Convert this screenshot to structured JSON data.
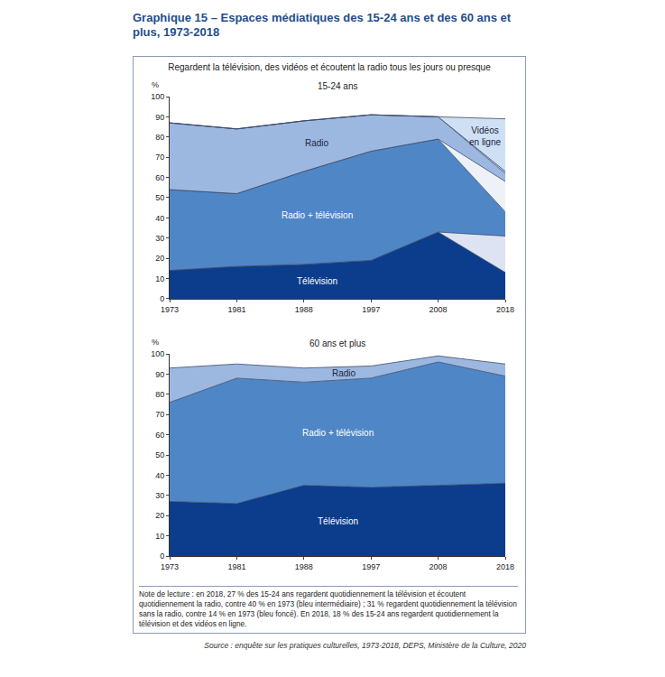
{
  "title": "Graphique 15 – Espaces médiatiques des 15-24 ans et des 60 ans et plus, 1973-2018",
  "heading": "Regardent la télévision, des vidéos et écoutent la radio tous les jours ou presque",
  "note": "Note de lecture : en 2018, 27 % des 15-24 ans regardent quotidiennement la télévision et écoutent quotidiennement la radio, contre 40 % en 1973 (bleu intermédiaire) ; 31 % regardent quotidiennement la télévision sans la radio, contre 14 % en 1973 (bleu foncé). En 2018, 18 % des 15-24 ans regardent quotidiennement la télévision et des vidéos en ligne.",
  "source": "Source : enquête sur les pratiques culturelles, 1973-2018, DEPS, Ministère de la Culture, 2020",
  "chart_data": [
    {
      "type": "area",
      "title": "15-24 ans",
      "ylabel": "%",
      "categories": [
        "1973",
        "1981",
        "1988",
        "1997",
        "2008",
        "2018"
      ],
      "stacked": true,
      "grid": false,
      "ylim": [
        0,
        100
      ],
      "yticks": [
        0,
        10,
        20,
        30,
        40,
        50,
        60,
        70,
        80,
        90,
        100
      ],
      "series": [
        {
          "name": "Télévision",
          "color": "#0b3d8c",
          "values": [
            14,
            16,
            17,
            19,
            33,
            13
          ]
        },
        {
          "color": "#dde3f2",
          "values": [
            0,
            0,
            0,
            0,
            0,
            18
          ]
        },
        {
          "name": "Radio + télévision",
          "color": "#4f86c6",
          "values": [
            40,
            36,
            46,
            54,
            46,
            12
          ]
        },
        {
          "color": "#eef1f8",
          "values": [
            0,
            0,
            0,
            0,
            0,
            15
          ]
        },
        {
          "name": "Radio",
          "color": "#9db8e0",
          "values": [
            33,
            32,
            25,
            18,
            11,
            4
          ]
        },
        {
          "color": "#b8cbe8",
          "values": [
            0,
            0,
            0,
            0,
            0,
            1
          ]
        },
        {
          "name": "Vidéos en ligne",
          "color": "#cfe0f5",
          "values": [
            0,
            0,
            0,
            0,
            0,
            26
          ]
        }
      ]
    },
    {
      "type": "area",
      "title": "60 ans et plus",
      "ylabel": "%",
      "categories": [
        "1973",
        "1981",
        "1988",
        "1997",
        "2008",
        "2018"
      ],
      "stacked": true,
      "grid": false,
      "ylim": [
        0,
        100
      ],
      "yticks": [
        0,
        10,
        20,
        30,
        40,
        50,
        60,
        70,
        80,
        90,
        100
      ],
      "series": [
        {
          "name": "Télévision",
          "color": "#0b3d8c",
          "values": [
            27,
            26,
            35,
            34,
            35,
            36
          ]
        },
        {
          "name": "Radio + télévision",
          "color": "#4f86c6",
          "values": [
            49,
            62,
            51,
            54,
            61,
            53
          ]
        },
        {
          "name": "Radio",
          "color": "#9db8e0",
          "values": [
            17,
            7,
            7,
            6,
            3,
            6
          ]
        }
      ]
    }
  ]
}
